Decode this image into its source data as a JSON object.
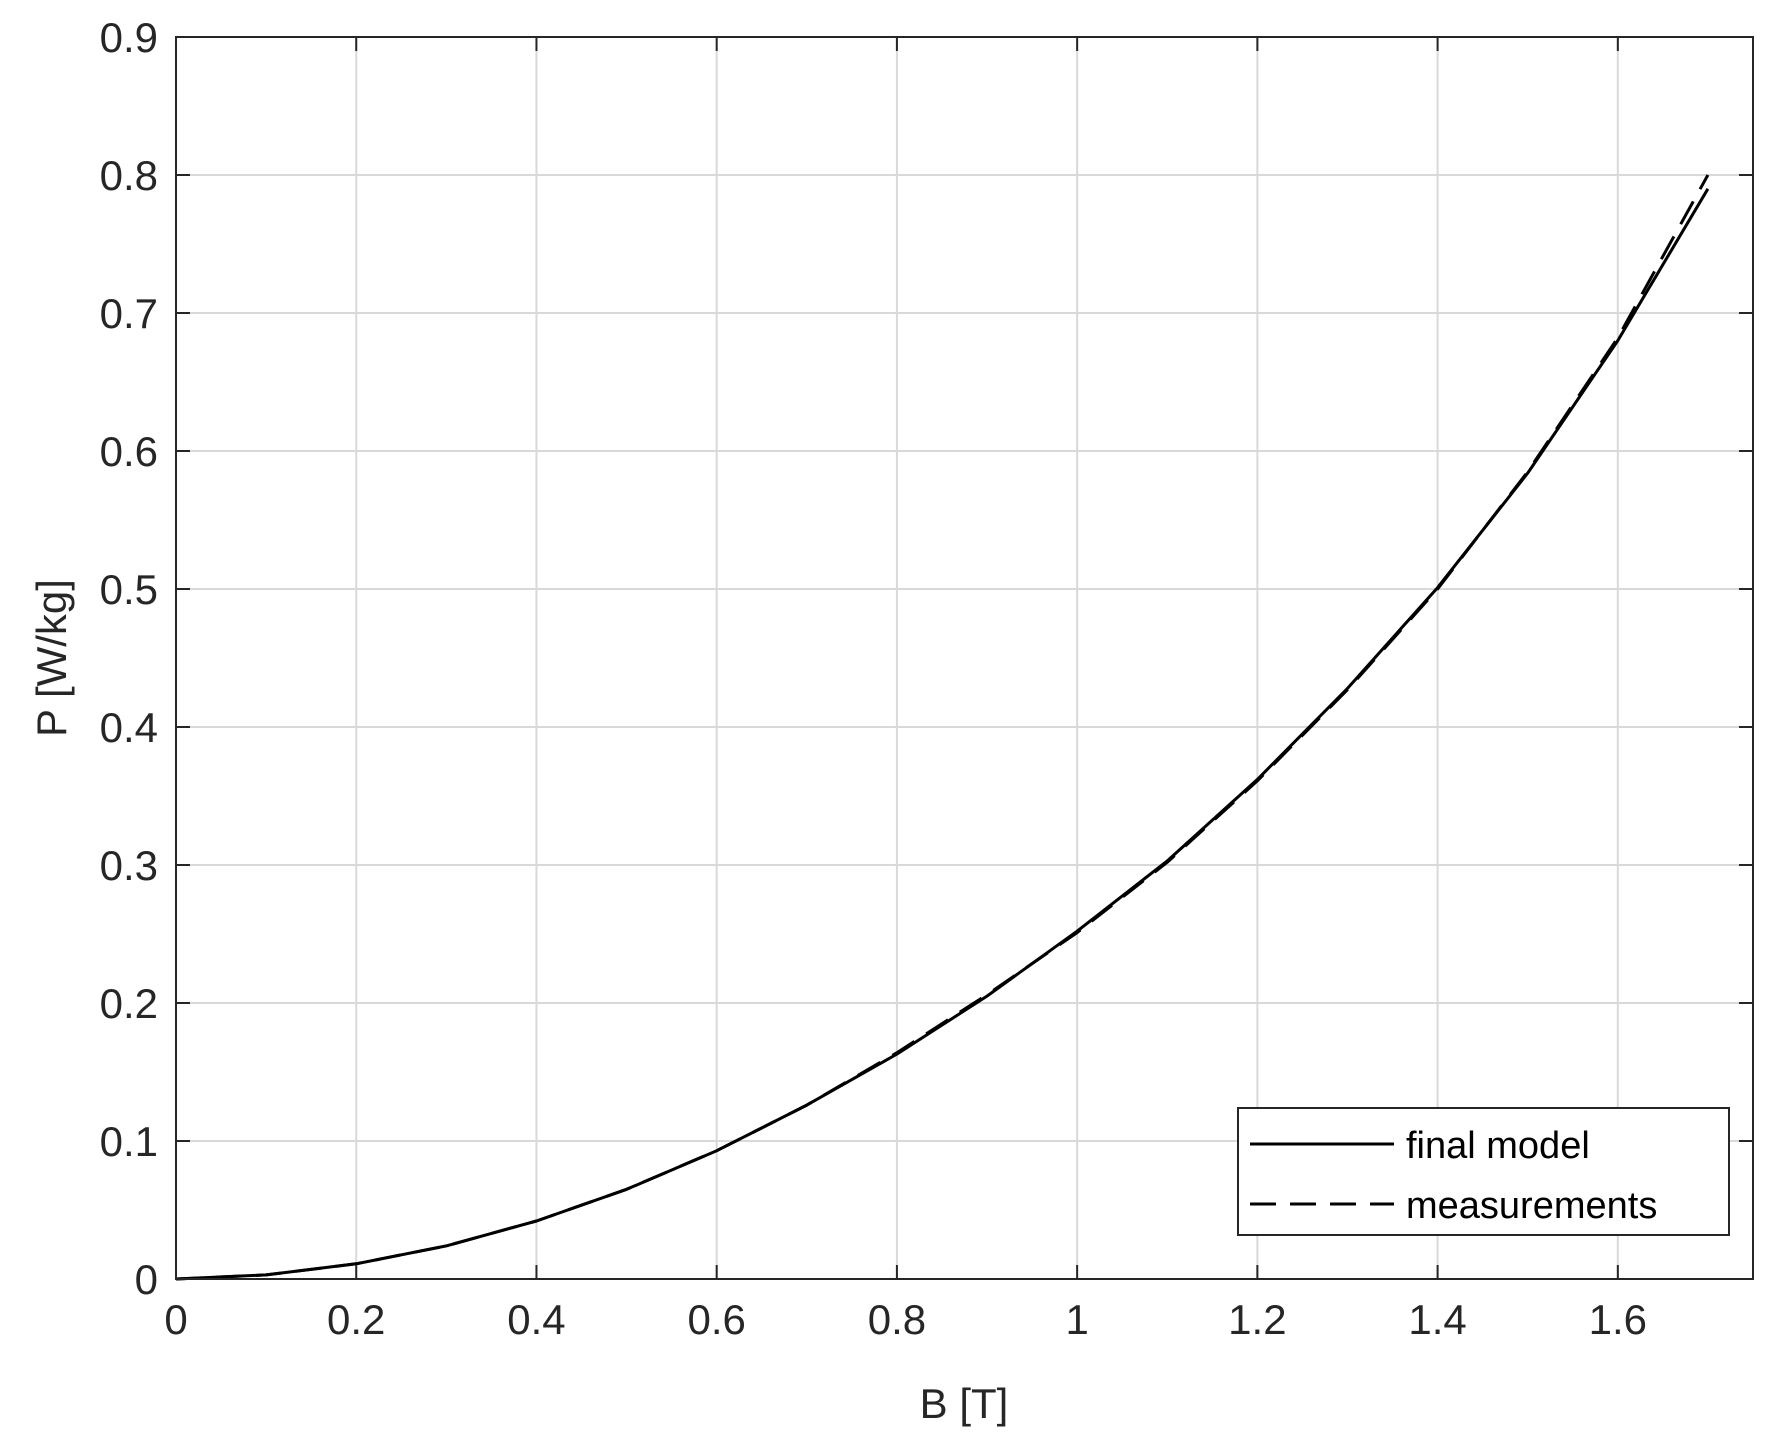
{
  "chart_data": {
    "type": "line",
    "title": "",
    "xlabel": "B [T]",
    "ylabel": "P [W/kg]",
    "xlim": [
      0,
      1.75
    ],
    "ylim": [
      0,
      0.9
    ],
    "xticks": [
      0,
      0.2,
      0.4,
      0.6,
      0.8,
      1,
      1.2,
      1.4,
      1.6
    ],
    "xtick_labels": [
      "0",
      "0.2",
      "0.4",
      "0.6",
      "0.8",
      "1",
      "1.2",
      "1.4",
      "1.6"
    ],
    "yticks": [
      0,
      0.1,
      0.2,
      0.3,
      0.4,
      0.5,
      0.6,
      0.7,
      0.8,
      0.9
    ],
    "ytick_labels": [
      "0",
      "0.1",
      "0.2",
      "0.3",
      "0.4",
      "0.5",
      "0.6",
      "0.7",
      "0.8",
      "0.9"
    ],
    "grid": true,
    "legend_position": "bottom-right",
    "colors": {
      "axes": "#262626",
      "grid": "#d9d9d9",
      "series": "#000000"
    },
    "series": [
      {
        "name": "final model",
        "line_style": "solid",
        "x": [
          0,
          0.1,
          0.2,
          0.3,
          0.4,
          0.5,
          0.6,
          0.7,
          0.8,
          0.9,
          1.0,
          1.1,
          1.2,
          1.3,
          1.4,
          1.5,
          1.6,
          1.7
        ],
        "y": [
          0,
          0.003,
          0.011,
          0.024,
          0.042,
          0.065,
          0.093,
          0.126,
          0.163,
          0.205,
          0.252,
          0.303,
          0.362,
          0.428,
          0.501,
          0.584,
          0.68,
          0.79
        ]
      },
      {
        "name": "measurements",
        "line_style": "dashed",
        "x": [
          0,
          0.1,
          0.2,
          0.3,
          0.4,
          0.5,
          0.6,
          0.7,
          0.8,
          0.9,
          1.0,
          1.1,
          1.2,
          1.3,
          1.4,
          1.5,
          1.6,
          1.7
        ],
        "y": [
          0,
          0.003,
          0.011,
          0.024,
          0.042,
          0.065,
          0.093,
          0.126,
          0.164,
          0.206,
          0.251,
          0.302,
          0.361,
          0.427,
          0.5,
          0.585,
          0.682,
          0.8
        ]
      }
    ]
  }
}
